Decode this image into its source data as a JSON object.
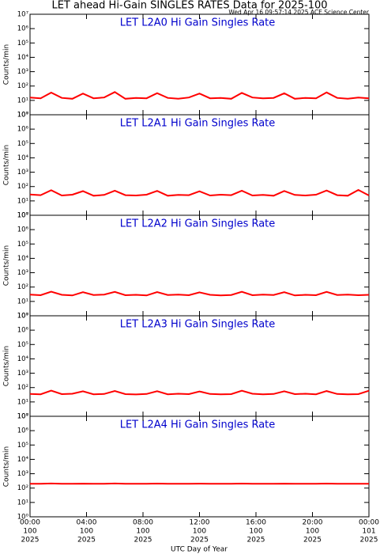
{
  "title": "LET ahead Hi-Gain SINGLES RATES Data for 2025-100",
  "timestamp": "Wed Apr 16 09:57:14 2025 ACE Science Center",
  "x_axis": {
    "title": "UTC Day of Year",
    "labels": [
      "00:00",
      "04:00",
      "08:00",
      "12:00",
      "16:00",
      "20:00",
      "00:00"
    ],
    "days": [
      "100",
      "100",
      "100",
      "100",
      "100",
      "100",
      "101"
    ],
    "years": [
      "2025",
      "2025",
      "2025",
      "2025",
      "2025",
      "2025",
      "2025"
    ]
  },
  "chart_data": [
    {
      "type": "line",
      "title": "LET L2A0 Hi Gain Singles Rate",
      "ylabel": "Counts/min",
      "log_y": true,
      "xlim": [
        0,
        24
      ],
      "xticks": [
        0,
        4,
        8,
        12,
        16,
        20,
        24
      ],
      "ylim": [
        1,
        10000000
      ],
      "yticks": [
        {
          "value": 1,
          "label": "10⁰"
        },
        {
          "value": 10,
          "label": "10¹"
        },
        {
          "value": 100,
          "label": "10²"
        },
        {
          "value": 1000,
          "label": "10³"
        },
        {
          "value": 10000,
          "label": "10⁴"
        },
        {
          "value": 100000,
          "label": "10⁵"
        },
        {
          "value": 1000000,
          "label": "10⁶"
        },
        {
          "value": 10000000,
          "label": "10⁷"
        }
      ],
      "x": [
        0,
        0.75,
        1.5,
        2.25,
        3,
        3.75,
        4.5,
        5.25,
        6,
        6.75,
        7.5,
        8.25,
        9,
        9.75,
        10.5,
        11.25,
        12,
        12.75,
        13.5,
        14.25,
        15,
        15.75,
        16.5,
        17.25,
        18,
        18.75,
        19.5,
        20.25,
        21,
        21.75,
        22.5,
        23.25,
        24
      ],
      "series": [
        {
          "color": "#ff0000",
          "values": [
            16,
            14,
            35,
            15,
            13,
            30,
            14,
            16,
            38,
            13,
            15,
            14,
            32,
            15,
            13,
            16,
            30,
            14,
            15,
            13,
            33,
            16,
            14,
            15,
            31,
            13,
            15,
            14,
            36,
            15,
            13,
            16,
            14
          ]
        }
      ]
    },
    {
      "type": "line",
      "title": "LET L2A1 Hi Gain Singles Rate",
      "ylabel": "Counts/min",
      "log_y": true,
      "xlim": [
        0,
        24
      ],
      "xticks": [
        0,
        4,
        8,
        12,
        16,
        20,
        24
      ],
      "ylim": [
        1,
        10000000
      ],
      "yticks": [
        {
          "value": 1,
          "label": "10⁰"
        },
        {
          "value": 10,
          "label": "10¹"
        },
        {
          "value": 100,
          "label": "10²"
        },
        {
          "value": 1000,
          "label": "10³"
        },
        {
          "value": 10000,
          "label": "10⁴"
        },
        {
          "value": 100000,
          "label": "10⁵"
        },
        {
          "value": 1000000,
          "label": "10⁶"
        },
        {
          "value": 10000000,
          "label": "10⁷"
        }
      ],
      "x": [
        0,
        0.75,
        1.5,
        2.25,
        3,
        3.75,
        4.5,
        5.25,
        6,
        6.75,
        7.5,
        8.25,
        9,
        9.75,
        10.5,
        11.25,
        12,
        12.75,
        13.5,
        14.25,
        15,
        15.75,
        16.5,
        17.25,
        18,
        18.75,
        19.5,
        20.25,
        21,
        21.75,
        22.5,
        23.25,
        24
      ],
      "series": [
        {
          "color": "#ff0000",
          "values": [
            28,
            25,
            55,
            24,
            27,
            48,
            23,
            26,
            52,
            25,
            24,
            27,
            50,
            23,
            26,
            25,
            47,
            24,
            27,
            25,
            51,
            24,
            26,
            23,
            49,
            26,
            24,
            27,
            53,
            25,
            23,
            58,
            24
          ]
        }
      ]
    },
    {
      "type": "line",
      "title": "LET L2A2 Hi Gain Singles Rate",
      "ylabel": "Counts/min",
      "log_y": true,
      "xlim": [
        0,
        24
      ],
      "xticks": [
        0,
        4,
        8,
        12,
        16,
        20,
        24
      ],
      "ylim": [
        1,
        10000000
      ],
      "yticks": [
        {
          "value": 1,
          "label": "10⁰"
        },
        {
          "value": 10,
          "label": "10¹"
        },
        {
          "value": 100,
          "label": "10²"
        },
        {
          "value": 1000,
          "label": "10³"
        },
        {
          "value": 10000,
          "label": "10⁴"
        },
        {
          "value": 100000,
          "label": "10⁵"
        },
        {
          "value": 1000000,
          "label": "10⁶"
        },
        {
          "value": 10000000,
          "label": "10⁷"
        }
      ],
      "x": [
        0,
        0.75,
        1.5,
        2.25,
        3,
        3.75,
        4.5,
        5.25,
        6,
        6.75,
        7.5,
        8.25,
        9,
        9.75,
        10.5,
        11.25,
        12,
        12.75,
        13.5,
        14.25,
        15,
        15.75,
        16.5,
        17.25,
        18,
        18.75,
        19.5,
        20.25,
        21,
        21.75,
        22.5,
        23.25,
        24
      ],
      "series": [
        {
          "color": "#ff0000",
          "values": [
            30,
            27,
            48,
            29,
            26,
            44,
            28,
            30,
            46,
            27,
            29,
            26,
            45,
            28,
            30,
            27,
            43,
            29,
            26,
            28,
            47,
            27,
            30,
            28,
            44,
            26,
            29,
            27,
            46,
            28,
            30,
            27,
            29
          ]
        }
      ]
    },
    {
      "type": "line",
      "title": "LET L2A3 Hi Gain Singles Rate",
      "ylabel": "Counts/min",
      "log_y": true,
      "xlim": [
        0,
        24
      ],
      "xticks": [
        0,
        4,
        8,
        12,
        16,
        20,
        24
      ],
      "ylim": [
        1,
        10000000
      ],
      "yticks": [
        {
          "value": 1,
          "label": "10⁰"
        },
        {
          "value": 10,
          "label": "10¹"
        },
        {
          "value": 100,
          "label": "10²"
        },
        {
          "value": 1000,
          "label": "10³"
        },
        {
          "value": 10000,
          "label": "10⁴"
        },
        {
          "value": 100000,
          "label": "10⁵"
        },
        {
          "value": 1000000,
          "label": "10⁶"
        },
        {
          "value": 10000000,
          "label": "10⁷"
        }
      ],
      "x": [
        0,
        0.75,
        1.5,
        2.25,
        3,
        3.75,
        4.5,
        5.25,
        6,
        6.75,
        7.5,
        8.25,
        9,
        9.75,
        10.5,
        11.25,
        12,
        12.75,
        13.5,
        14.25,
        15,
        15.75,
        16.5,
        17.25,
        18,
        18.75,
        19.5,
        20.25,
        21,
        21.75,
        22.5,
        23.25,
        24
      ],
      "series": [
        {
          "color": "#ff0000",
          "values": [
            36,
            34,
            62,
            35,
            37,
            55,
            34,
            36,
            58,
            35,
            33,
            36,
            56,
            34,
            37,
            35,
            54,
            36,
            34,
            35,
            60,
            37,
            34,
            36,
            55,
            35,
            37,
            34,
            57,
            36,
            34,
            35,
            60
          ]
        }
      ]
    },
    {
      "type": "line",
      "title": "LET L2A4 Hi Gain Singles Rate",
      "ylabel": "Counts/min",
      "log_y": true,
      "xlim": [
        0,
        24
      ],
      "xticks": [
        0,
        4,
        8,
        12,
        16,
        20,
        24
      ],
      "ylim": [
        1,
        10000000
      ],
      "yticks": [
        {
          "value": 1,
          "label": "10⁰"
        },
        {
          "value": 10,
          "label": "10¹"
        },
        {
          "value": 100,
          "label": "10²"
        },
        {
          "value": 1000,
          "label": "10³"
        },
        {
          "value": 10000,
          "label": "10⁴"
        },
        {
          "value": 100000,
          "label": "10⁵"
        },
        {
          "value": 1000000,
          "label": "10⁶"
        },
        {
          "value": 10000000,
          "label": "10⁷"
        }
      ],
      "x": [
        0,
        0.75,
        1.5,
        2.25,
        3,
        3.75,
        4.5,
        5.25,
        6,
        6.75,
        7.5,
        8.25,
        9,
        9.75,
        10.5,
        11.25,
        12,
        12.75,
        13.5,
        14.25,
        15,
        15.75,
        16.5,
        17.25,
        18,
        18.75,
        19.5,
        20.25,
        21,
        21.75,
        22.5,
        23.25,
        24
      ],
      "series": [
        {
          "color": "#ff0000",
          "values": [
            200,
            198,
            210,
            201,
            199,
            205,
            200,
            202,
            208,
            199,
            201,
            200,
            206,
            198,
            201,
            200,
            204,
            199,
            201,
            200,
            207,
            200,
            199,
            201,
            205,
            200,
            198,
            201,
            206,
            200,
            199,
            201,
            200
          ]
        }
      ]
    }
  ]
}
